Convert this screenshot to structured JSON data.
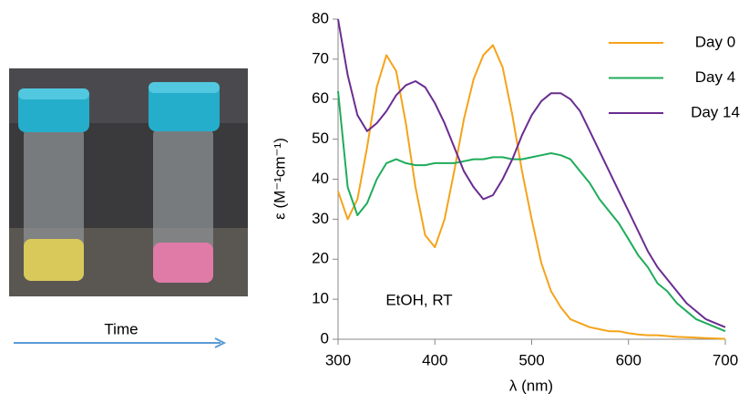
{
  "chart_data": {
    "type": "line",
    "time_label": "Time",
    "annotation": "EtOH, RT",
    "x_label": "λ (nm)",
    "y_label": "ε (M⁻¹cm⁻¹)",
    "x": [
      300,
      310,
      320,
      330,
      340,
      350,
      360,
      370,
      380,
      390,
      400,
      410,
      420,
      430,
      440,
      450,
      460,
      470,
      480,
      490,
      500,
      510,
      520,
      530,
      540,
      550,
      560,
      570,
      580,
      590,
      600,
      610,
      620,
      630,
      640,
      650,
      660,
      670,
      680,
      690,
      700
    ],
    "series": [
      {
        "name": "Day 0",
        "color": "#f5a31a",
        "values": [
          37,
          30,
          35,
          48,
          63,
          71,
          67,
          54,
          38,
          26,
          23,
          30,
          42,
          55,
          65,
          71,
          73.5,
          68,
          56,
          42,
          30,
          19,
          12,
          8,
          5,
          4,
          3,
          2.5,
          2,
          2,
          1.5,
          1.2,
          1,
          1,
          0.8,
          0.6,
          0.5,
          0.4,
          0.3,
          0.2,
          0.1
        ]
      },
      {
        "name": "Day 4",
        "color": "#1fac5a",
        "values": [
          62,
          38,
          31,
          34,
          40,
          44,
          45,
          44,
          43.5,
          43.5,
          44,
          44,
          44,
          44.5,
          45,
          45,
          45.5,
          45.5,
          45,
          45,
          45.5,
          46,
          46.5,
          46,
          45,
          42,
          39,
          35,
          32,
          29,
          25,
          21,
          18,
          14,
          12,
          9,
          7,
          5,
          4,
          3,
          2
        ]
      },
      {
        "name": "Day 14",
        "color": "#6a2c91",
        "values": [
          80,
          66,
          56,
          52,
          54,
          57,
          61,
          63.5,
          64.5,
          63,
          59,
          54,
          48,
          42,
          38,
          35,
          36,
          40,
          45,
          51,
          56,
          59.5,
          61.5,
          61.5,
          60,
          57,
          52,
          47,
          42,
          37,
          32,
          27,
          22,
          18,
          15,
          12,
          9,
          7,
          5,
          4,
          3
        ]
      }
    ],
    "xlim": [
      300,
      700
    ],
    "xticks": [
      300,
      400,
      500,
      600,
      700
    ],
    "ylim": [
      0,
      80
    ],
    "yticks": [
      0,
      10,
      20,
      30,
      40,
      50,
      60,
      70,
      80
    ],
    "legend": "upper right"
  }
}
